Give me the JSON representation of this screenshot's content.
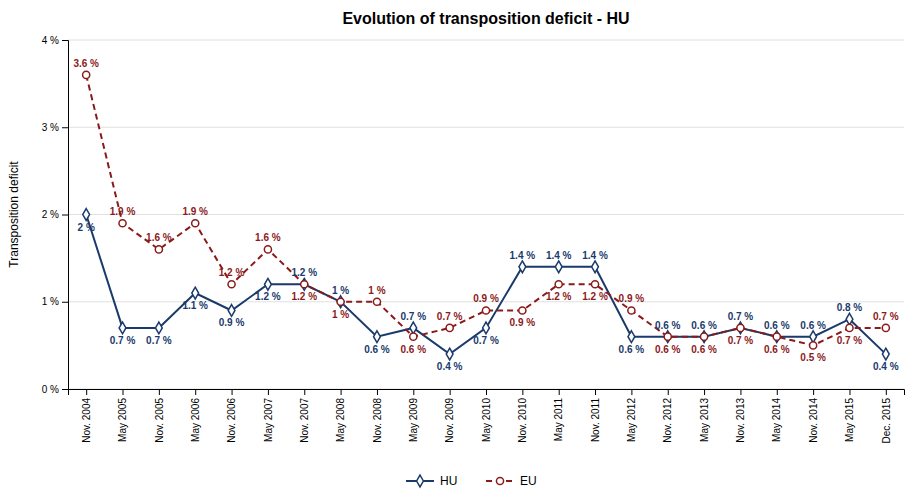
{
  "chart_data": {
    "type": "line",
    "title": "Evolution of transposition deficit - HU",
    "y_label": "Transposition deficit",
    "categories": [
      "Nov. 2004",
      "May 2005",
      "Nov. 2005",
      "May 2006",
      "Nov. 2006",
      "May 2007",
      "Nov. 2007",
      "May 2008",
      "Nov. 2008",
      "May 2009",
      "Nov. 2009",
      "May 2010",
      "Nov. 2010",
      "May 2011",
      "Nov. 2011",
      "May 2012",
      "Nov. 2012",
      "May 2013",
      "Nov. 2013",
      "May 2014",
      "Nov. 2014",
      "May 2015",
      "Dec. 2015"
    ],
    "series": [
      {
        "name": "HU",
        "color": "#1a3a6b",
        "marker": "diamond",
        "line_style": "solid",
        "values": [
          2.0,
          0.7,
          0.7,
          1.1,
          0.9,
          1.2,
          1.2,
          1.0,
          0.6,
          0.7,
          0.4,
          0.7,
          1.4,
          1.4,
          1.4,
          0.6,
          0.6,
          0.6,
          0.7,
          0.6,
          0.6,
          0.8,
          0.4
        ],
        "value_labels": [
          "2 %",
          "0.7 %",
          "0.7 %",
          "1.1 %",
          "0.9 %",
          "1.2 %",
          "1.2 %",
          "1 %",
          "0.6 %",
          "0.7 %",
          "0.4 %",
          "0.7 %",
          "1.4 %",
          "1.4 %",
          "1.4 %",
          "0.6 %",
          "0.6 %",
          "0.6 %",
          "0.7 %",
          "0.6 %",
          "0.6 %",
          "0.8 %",
          "0.4 %"
        ]
      },
      {
        "name": "EU",
        "color": "#8b1a1a",
        "marker": "circle",
        "line_style": "dashed",
        "values": [
          3.6,
          1.9,
          1.6,
          1.9,
          1.2,
          1.6,
          1.2,
          1.0,
          1.0,
          0.6,
          0.7,
          0.9,
          0.9,
          1.2,
          1.2,
          0.9,
          0.6,
          0.6,
          0.7,
          0.6,
          0.5,
          0.7,
          0.7
        ],
        "value_labels": [
          "3.6 %",
          "1.9 %",
          "1.6 %",
          "1.9 %",
          "1.2 %",
          "1.6 %",
          "1.2 %",
          "1 %",
          "1 %",
          "0.6 %",
          "0.7 %",
          "0.9 %",
          "0.9 %",
          "1.2 %",
          "1.2 %",
          "0.9 %",
          "0.6 %",
          "0.6 %",
          "0.7 %",
          "0.6 %",
          "0.5 %",
          "0.7 %",
          "0.7 %"
        ]
      }
    ],
    "ylim": [
      0,
      4
    ],
    "yticks": [
      {
        "value": 0,
        "label": "0 %"
      },
      {
        "value": 1,
        "label": "1 %"
      },
      {
        "value": 2,
        "label": "2 %"
      },
      {
        "value": 3,
        "label": "3 %"
      },
      {
        "value": 4,
        "label": "4 %"
      }
    ],
    "grid": true,
    "legend": "bottom",
    "data_labels": true
  }
}
